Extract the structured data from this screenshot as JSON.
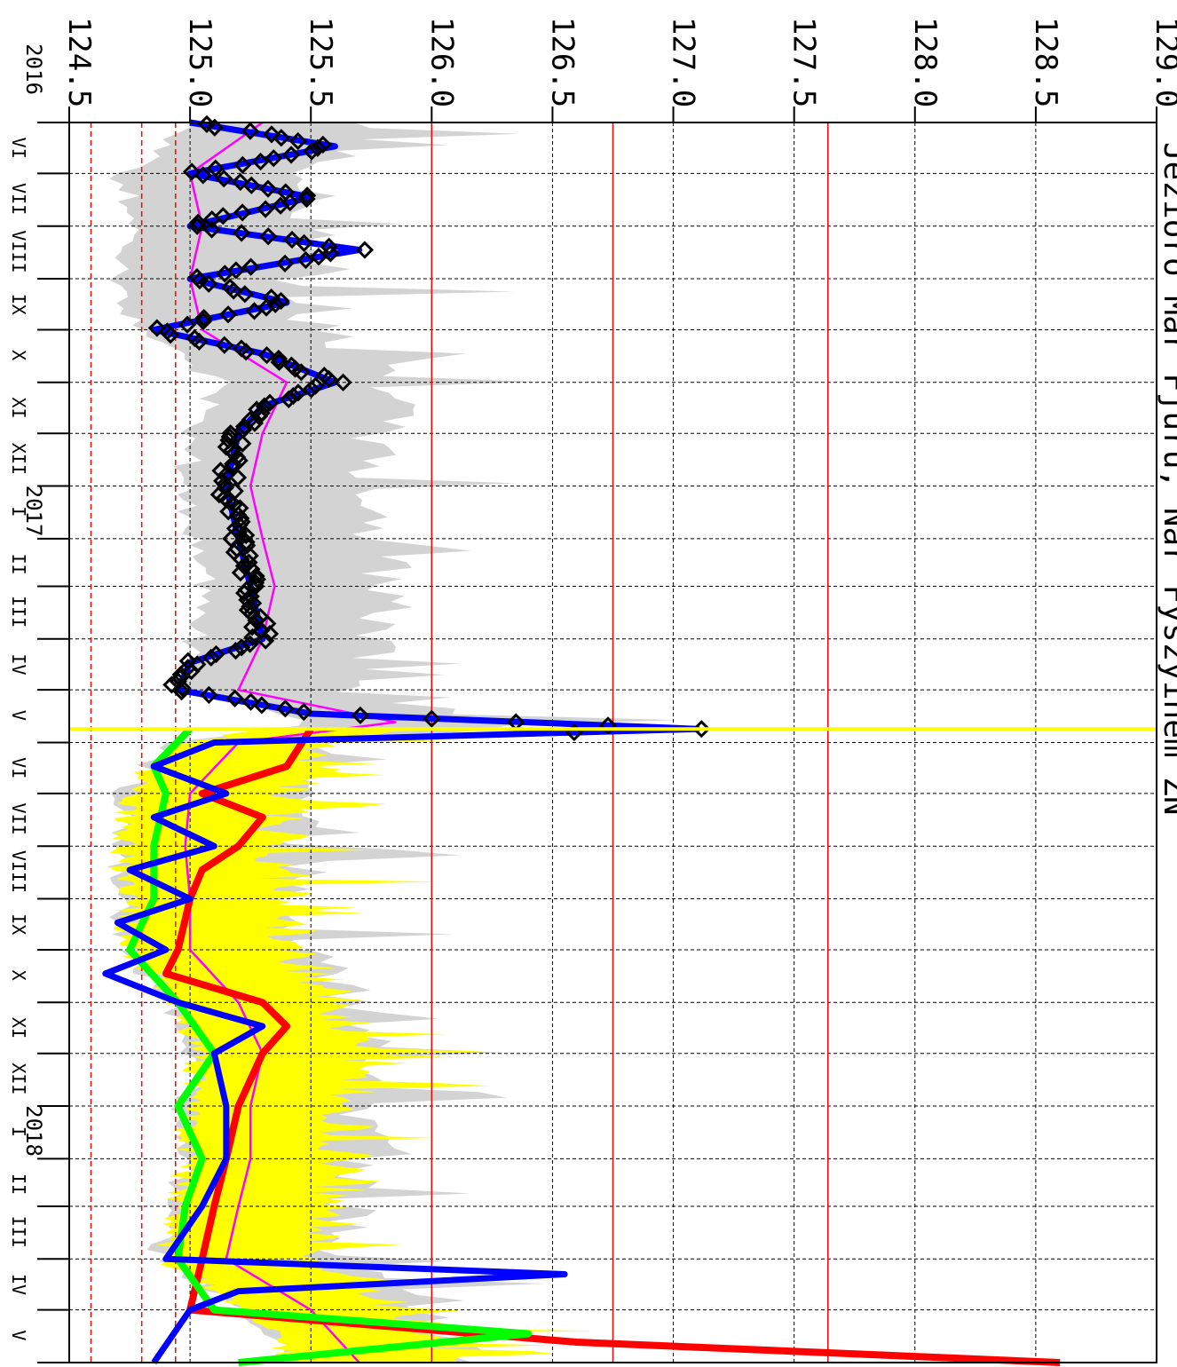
{
  "chart_data": {
    "type": "line",
    "title": "Jezioro Mar Fjuru, Nar Fyszyinem ZN",
    "ylim": [
      124.5,
      129.0
    ],
    "y_ticks": [
      "124.5",
      "125.0",
      "125.5",
      "126.0",
      "126.5",
      "127.0",
      "127.5",
      "128.0",
      "128.5",
      "129.0"
    ],
    "x_range": [
      "2016-06-01",
      "2018-06-01"
    ],
    "x_month_labels": [
      "VI",
      "VII",
      "VIII",
      "IX",
      "X",
      "XI",
      "XII",
      "I",
      "II",
      "III",
      "IV",
      "V",
      "VI",
      "VII",
      "VIII",
      "IX",
      "X",
      "XI",
      "XII",
      "I",
      "II",
      "III",
      "IV",
      "V"
    ],
    "year_labels": [
      "2016",
      "2017",
      "2018"
    ],
    "forecast_start": "2017-05-24",
    "thresholds": [
      {
        "value": 124.59,
        "style": "dashed",
        "color": "#ff0000"
      },
      {
        "value": 124.8,
        "style": "dashed",
        "color": "#ff0000"
      },
      {
        "value": 124.94,
        "style": "dashed",
        "color": "#ff0000"
      },
      {
        "value": 126.0,
        "style": "solid",
        "color": "#ff0000"
      },
      {
        "value": 126.75,
        "style": "solid",
        "color": "#ff0000"
      },
      {
        "value": 127.64,
        "style": "solid",
        "color": "#ff0000"
      }
    ],
    "series": [
      {
        "color": "#0000ff",
        "kind": "observed-fit",
        "points": [
          [
            "2016-06-01",
            125.0
          ],
          [
            "2016-06-15",
            125.6
          ],
          [
            "2016-07-01",
            125.0
          ],
          [
            "2016-07-15",
            125.5
          ],
          [
            "2016-08-01",
            125.0
          ],
          [
            "2016-08-15",
            125.7
          ],
          [
            "2016-09-01",
            125.0
          ],
          [
            "2016-09-15",
            125.4
          ],
          [
            "2016-10-01",
            124.85
          ],
          [
            "2016-10-15",
            125.3
          ],
          [
            "2016-11-01",
            125.6
          ],
          [
            "2016-11-15",
            125.3
          ],
          [
            "2016-12-01",
            125.2
          ],
          [
            "2017-01-01",
            125.15
          ],
          [
            "2017-02-01",
            125.2
          ],
          [
            "2017-03-01",
            125.25
          ],
          [
            "2017-04-01",
            125.3
          ],
          [
            "2017-04-15",
            125.0
          ],
          [
            "2017-05-01",
            124.95
          ],
          [
            "2017-05-15",
            125.5
          ],
          [
            "2017-05-24",
            127.1
          ],
          [
            "2017-06-01",
            125.1
          ],
          [
            "2017-06-15",
            124.85
          ],
          [
            "2017-07-01",
            125.15
          ],
          [
            "2017-07-15",
            124.85
          ],
          [
            "2017-08-01",
            125.1
          ],
          [
            "2017-08-15",
            124.75
          ],
          [
            "2017-09-01",
            125.0
          ],
          [
            "2017-09-15",
            124.7
          ],
          [
            "2017-10-01",
            124.9
          ],
          [
            "2017-10-15",
            124.65
          ],
          [
            "2017-11-01",
            124.95
          ],
          [
            "2017-11-15",
            125.3
          ],
          [
            "2017-12-01",
            125.1
          ],
          [
            "2018-01-01",
            125.15
          ],
          [
            "2018-02-01",
            125.15
          ],
          [
            "2018-03-01",
            125.05
          ],
          [
            "2018-04-01",
            124.9
          ],
          [
            "2018-04-10",
            126.55
          ],
          [
            "2018-04-20",
            125.2
          ],
          [
            "2018-05-01",
            125.0
          ],
          [
            "2018-06-01",
            124.85
          ]
        ]
      },
      {
        "color": "#ff0000",
        "kind": "forecast",
        "points": [
          [
            "2017-05-24",
            125.5
          ],
          [
            "2017-06-15",
            125.4
          ],
          [
            "2017-07-01",
            125.05
          ],
          [
            "2017-07-15",
            125.3
          ],
          [
            "2017-08-01",
            125.2
          ],
          [
            "2017-08-15",
            125.05
          ],
          [
            "2017-09-01",
            125.0
          ],
          [
            "2017-10-01",
            124.95
          ],
          [
            "2017-10-15",
            124.9
          ],
          [
            "2017-11-01",
            125.3
          ],
          [
            "2017-11-15",
            125.4
          ],
          [
            "2017-12-01",
            125.3
          ],
          [
            "2018-01-01",
            125.2
          ],
          [
            "2018-02-01",
            125.15
          ],
          [
            "2018-03-01",
            125.1
          ],
          [
            "2018-04-01",
            125.05
          ],
          [
            "2018-05-01",
            125.0
          ],
          [
            "2018-05-20",
            126.6
          ],
          [
            "2018-06-01",
            128.6
          ]
        ]
      },
      {
        "color": "#00ff00",
        "kind": "forecast",
        "points": [
          [
            "2017-05-24",
            125.0
          ],
          [
            "2017-06-15",
            124.85
          ],
          [
            "2017-07-01",
            124.9
          ],
          [
            "2017-08-01",
            124.85
          ],
          [
            "2017-09-01",
            124.85
          ],
          [
            "2017-10-01",
            124.75
          ],
          [
            "2017-11-01",
            124.95
          ],
          [
            "2017-12-01",
            125.1
          ],
          [
            "2018-01-01",
            124.95
          ],
          [
            "2018-02-01",
            125.05
          ],
          [
            "2018-03-01",
            124.98
          ],
          [
            "2018-04-01",
            124.95
          ],
          [
            "2018-05-01",
            125.1
          ],
          [
            "2018-05-15",
            126.4
          ],
          [
            "2018-06-01",
            125.2
          ]
        ]
      },
      {
        "color": "#ff00ff",
        "kind": "mean",
        "points": [
          [
            "2016-06-01",
            125.3
          ],
          [
            "2016-07-01",
            125.0
          ],
          [
            "2016-08-01",
            125.05
          ],
          [
            "2016-09-01",
            125.0
          ],
          [
            "2016-10-01",
            125.05
          ],
          [
            "2016-11-01",
            125.4
          ],
          [
            "2016-12-01",
            125.3
          ],
          [
            "2017-01-01",
            125.25
          ],
          [
            "2017-02-01",
            125.3
          ],
          [
            "2017-03-01",
            125.35
          ],
          [
            "2017-04-01",
            125.3
          ],
          [
            "2017-05-01",
            125.2
          ],
          [
            "2017-05-20",
            125.85
          ],
          [
            "2017-06-01",
            125.2
          ],
          [
            "2017-07-01",
            125.0
          ],
          [
            "2017-08-01",
            124.98
          ],
          [
            "2017-09-01",
            125.0
          ],
          [
            "2017-10-01",
            125.0
          ],
          [
            "2017-11-01",
            125.2
          ],
          [
            "2017-12-01",
            125.3
          ],
          [
            "2018-01-01",
            125.25
          ],
          [
            "2018-02-01",
            125.25
          ],
          [
            "2018-03-01",
            125.2
          ],
          [
            "2018-04-01",
            125.15
          ],
          [
            "2018-05-01",
            125.5
          ],
          [
            "2018-06-01",
            125.7
          ]
        ]
      }
    ],
    "bands": [
      {
        "color": "#d3d3d3",
        "kind": "historical-range"
      },
      {
        "color": "#ffff00",
        "kind": "forecast-range"
      }
    ],
    "markers": {
      "shape": "diamond",
      "color": "#000000",
      "note": "observed values"
    }
  }
}
